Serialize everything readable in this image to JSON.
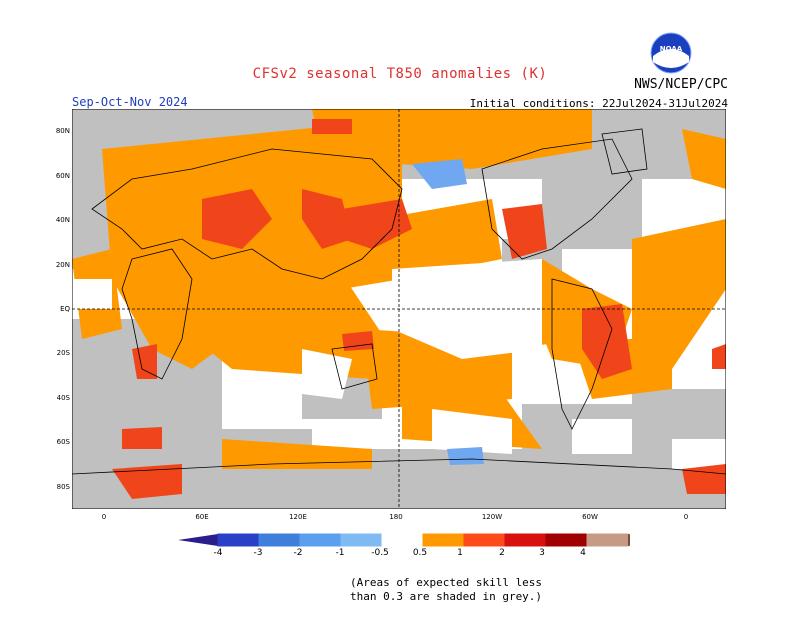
{
  "header": {
    "title": "CFSv2 seasonal T850 anomalies (K)",
    "org": "NWS/NCEP/CPC",
    "logo_text": "NOAA",
    "season": "Sep-Oct-Nov 2024",
    "initial_conditions": "Initial conditions: 22Jul2024-31Jul2024"
  },
  "axes": {
    "lat_labels": [
      "80N",
      "60N",
      "40N",
      "20N",
      "EQ",
      "20S",
      "40S",
      "60S",
      "80S"
    ],
    "lon_labels": [
      "0",
      "60E",
      "120E",
      "180",
      "120W",
      "60W",
      "0"
    ]
  },
  "colorbar": {
    "ticks": [
      "-4",
      "-3",
      "-2",
      "-1",
      "-0.5",
      "0.5",
      "1",
      "2",
      "3",
      "4"
    ],
    "colors": [
      "#2a1e8c",
      "#2a3fc8",
      "#3f7fdc",
      "#5aa0ee",
      "#7fbaf3",
      "#ffffff",
      "#ff9900",
      "#ff4a1a",
      "#d91010",
      "#a00000",
      "#c79a86",
      "#7a4a3a"
    ]
  },
  "palette": {
    "skill_grey": "#c0c0c0",
    "orange": "#ff9900",
    "red": "#f0451a",
    "light_blue": "#6fa8f0",
    "ocean_blank": "#ffffff"
  },
  "footnote": {
    "line1": "(Areas of expected skill less",
    "line2": "than 0.3 are shaded in grey.)"
  }
}
